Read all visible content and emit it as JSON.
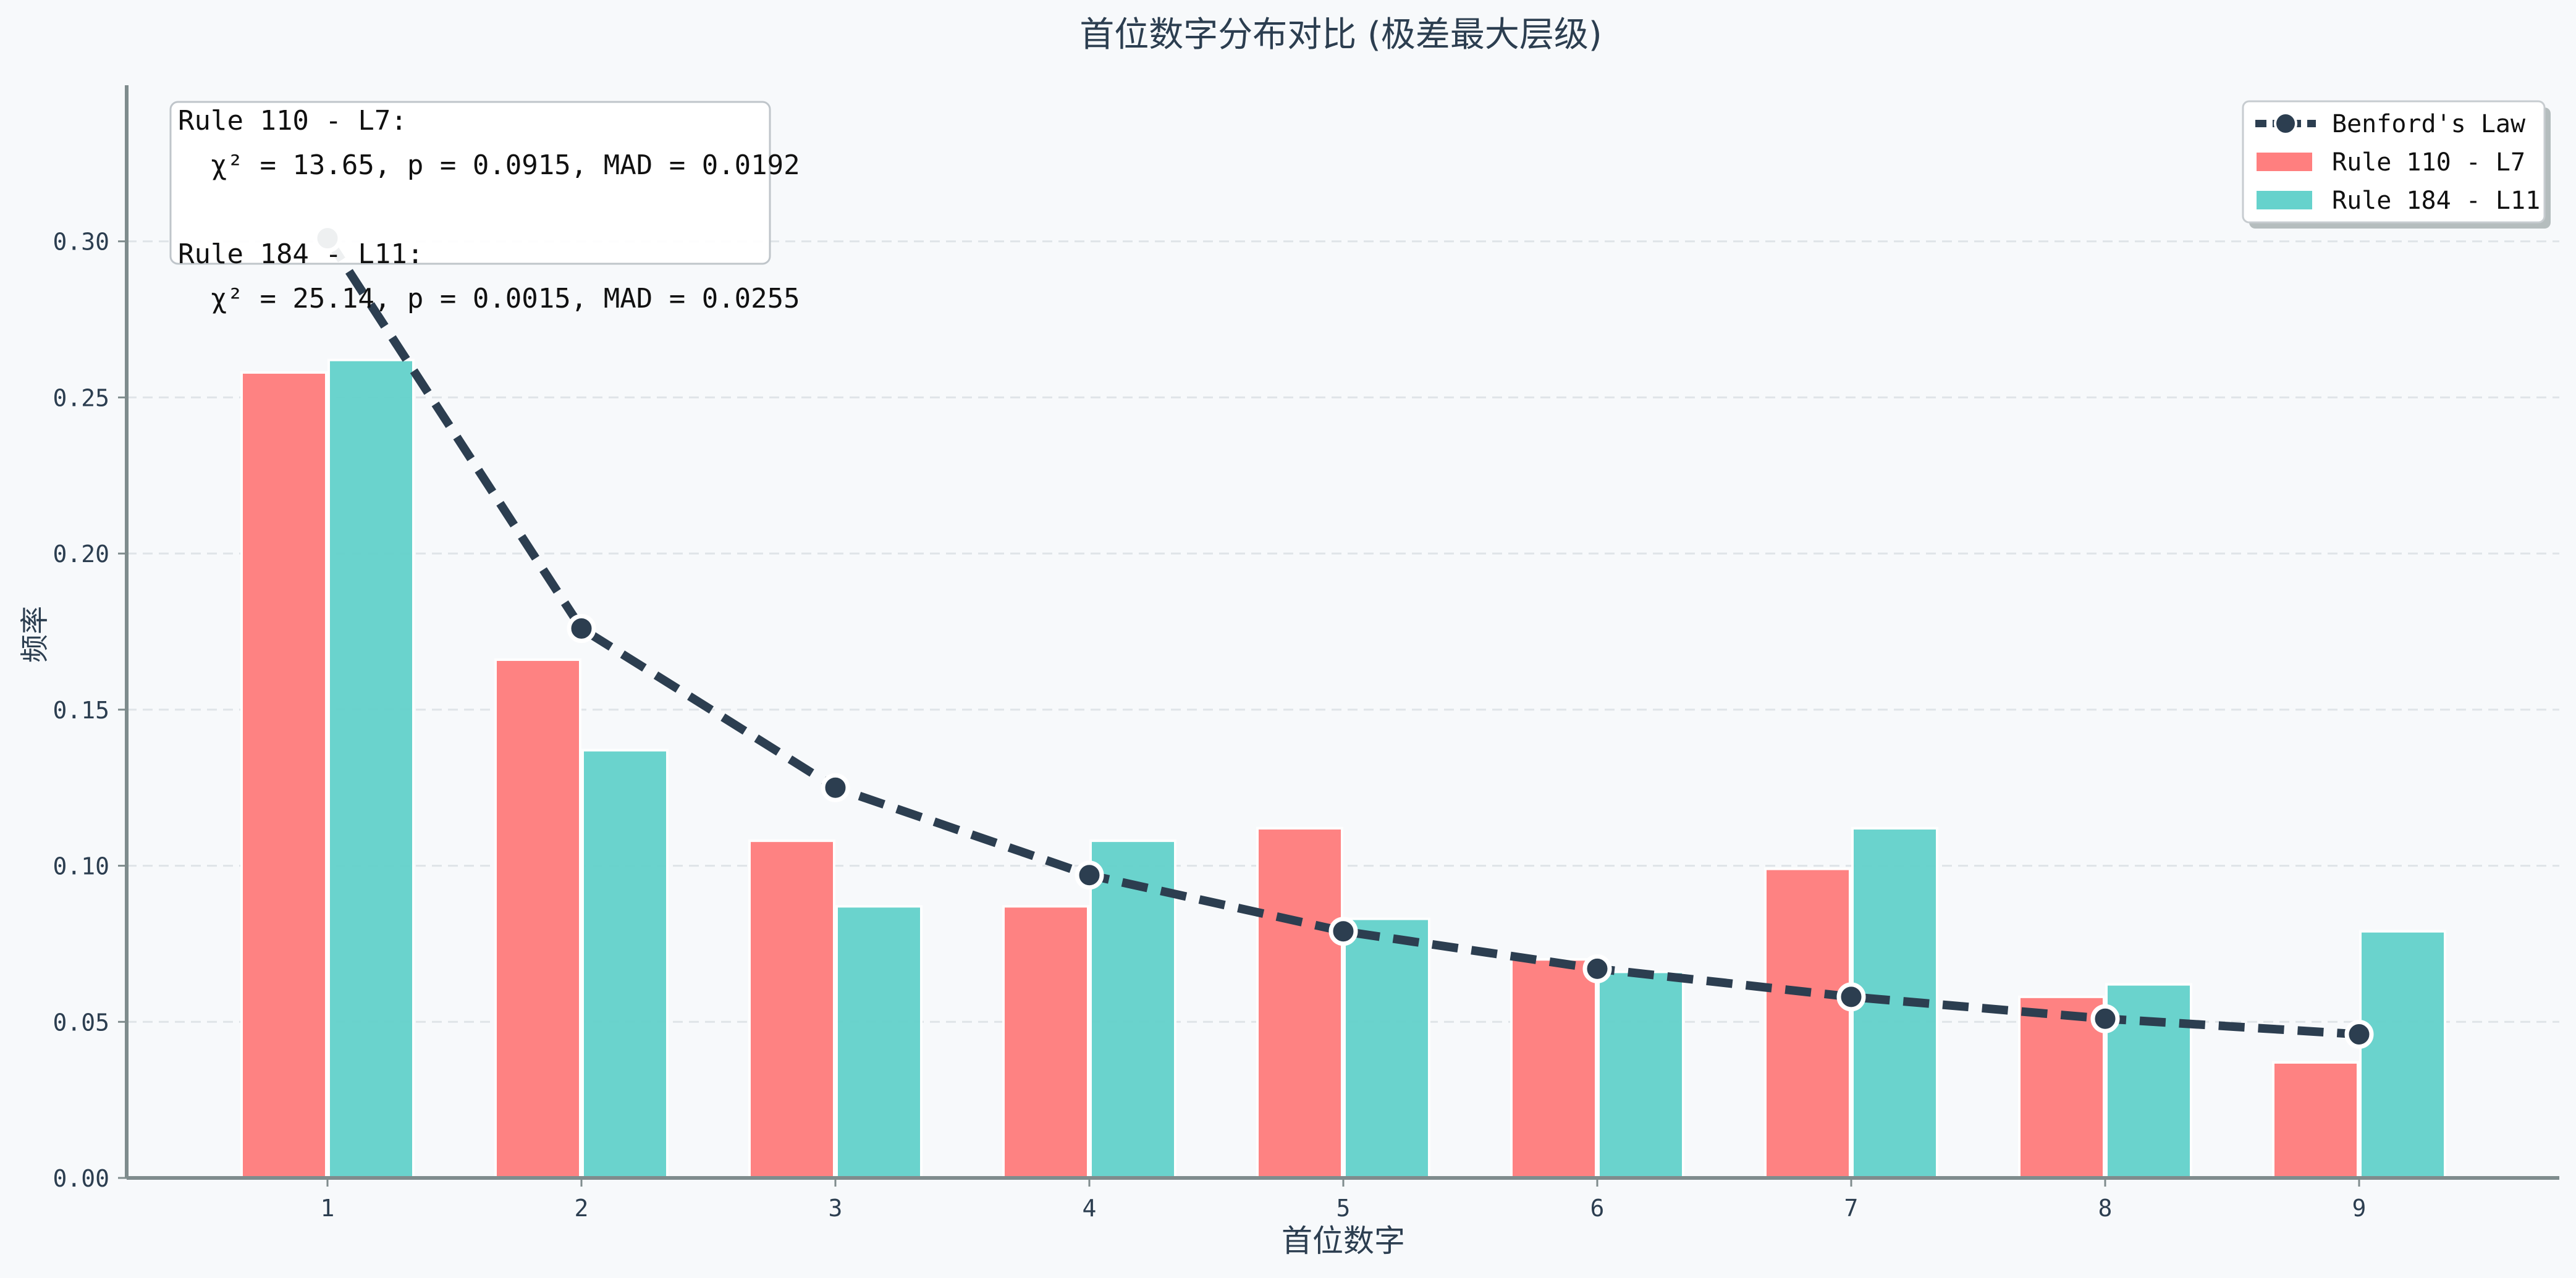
{
  "chart_data": {
    "type": "bar",
    "title": "首位数字分布对比 (极差最大层级)",
    "xlabel": "首位数字",
    "ylabel": "频率",
    "categories": [
      "1",
      "2",
      "3",
      "4",
      "5",
      "6",
      "7",
      "8",
      "9"
    ],
    "ylim": [
      0,
      0.35
    ],
    "yticks": [
      "0.00",
      "0.05",
      "0.10",
      "0.15",
      "0.20",
      "0.25",
      "0.30"
    ],
    "grid": "horizontal-dashed",
    "legend_position": "top-right",
    "series": [
      {
        "name": "Rule 110 - L7",
        "kind": "bar",
        "color": "#ff7f7f",
        "values": [
          0.258,
          0.166,
          0.108,
          0.087,
          0.112,
          0.07,
          0.099,
          0.058,
          0.037
        ]
      },
      {
        "name": "Rule 184 - L11",
        "kind": "bar",
        "color": "#66d2cc",
        "values": [
          0.262,
          0.137,
          0.087,
          0.108,
          0.083,
          0.066,
          0.112,
          0.062,
          0.079
        ]
      },
      {
        "name": "Benford's Law",
        "kind": "line",
        "color": "#2c3e50",
        "values": [
          0.301,
          0.176,
          0.125,
          0.097,
          0.079,
          0.067,
          0.058,
          0.051,
          0.046
        ]
      }
    ],
    "annotation": {
      "lines": [
        "Rule 110 - L7:",
        "  χ² = 13.65, p = 0.0915, MAD = 0.0192",
        "",
        "Rule 184 - L11:",
        "  χ² = 25.14, p = 0.0015, MAD = 0.0255"
      ]
    }
  }
}
